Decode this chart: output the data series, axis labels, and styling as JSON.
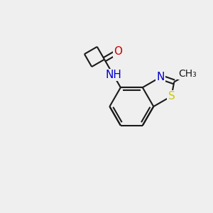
{
  "background_color": "#efefef",
  "bond_color": "#1a1a1a",
  "bond_width": 1.5,
  "atoms": {
    "S": {
      "color": "#cccc00",
      "fontsize": 11
    },
    "N": {
      "color": "#0000cc",
      "fontsize": 11
    },
    "O": {
      "color": "#cc0000",
      "fontsize": 11
    },
    "NH": {
      "color": "#0000cc",
      "fontsize": 11
    },
    "CH3": {
      "color": "#1a1a1a",
      "fontsize": 10
    }
  },
  "figsize": [
    3.0,
    3.0
  ],
  "dpi": 100,
  "xlim": [
    0,
    10
  ],
  "ylim": [
    0,
    10
  ]
}
